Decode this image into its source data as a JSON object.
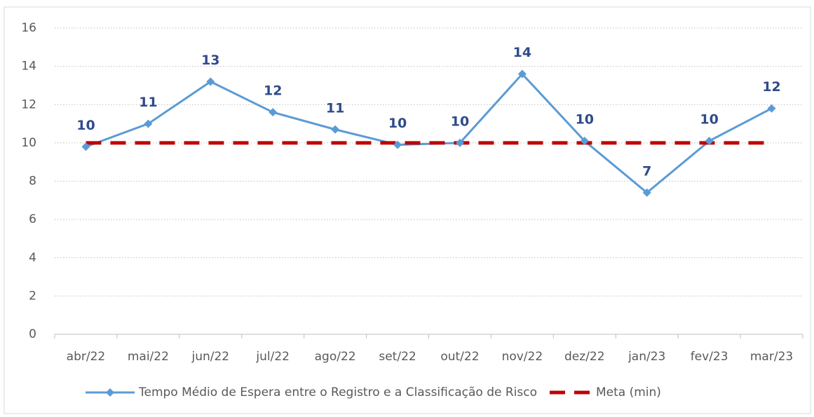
{
  "chart_data": {
    "type": "line",
    "categories": [
      "abr/22",
      "mai/22",
      "jun/22",
      "jul/22",
      "ago/22",
      "set/22",
      "out/22",
      "nov/22",
      "dez/22",
      "jan/23",
      "fev/23",
      "mar/23"
    ],
    "series": [
      {
        "name": "Tempo Médio de Espera entre o Registro e a Classificação de Risco",
        "color": "#5B9BD5",
        "values": [
          9.8,
          11.0,
          13.2,
          11.6,
          10.7,
          9.9,
          10.0,
          13.6,
          10.1,
          7.4,
          10.1,
          11.8
        ],
        "value_labels": [
          "10",
          "11",
          "13",
          "12",
          "11",
          "10",
          "10",
          "14",
          "10",
          "7",
          "10",
          "12"
        ]
      },
      {
        "name": "Meta (min)",
        "color": "#C00000",
        "dashed": true,
        "values": [
          10,
          10,
          10,
          10,
          10,
          10,
          10,
          10,
          10,
          10,
          10,
          10
        ]
      }
    ],
    "ylim": [
      0,
      16
    ],
    "yticks": [
      0,
      2,
      4,
      6,
      8,
      10,
      12,
      14,
      16
    ],
    "grid": true,
    "legend": "bottom"
  }
}
